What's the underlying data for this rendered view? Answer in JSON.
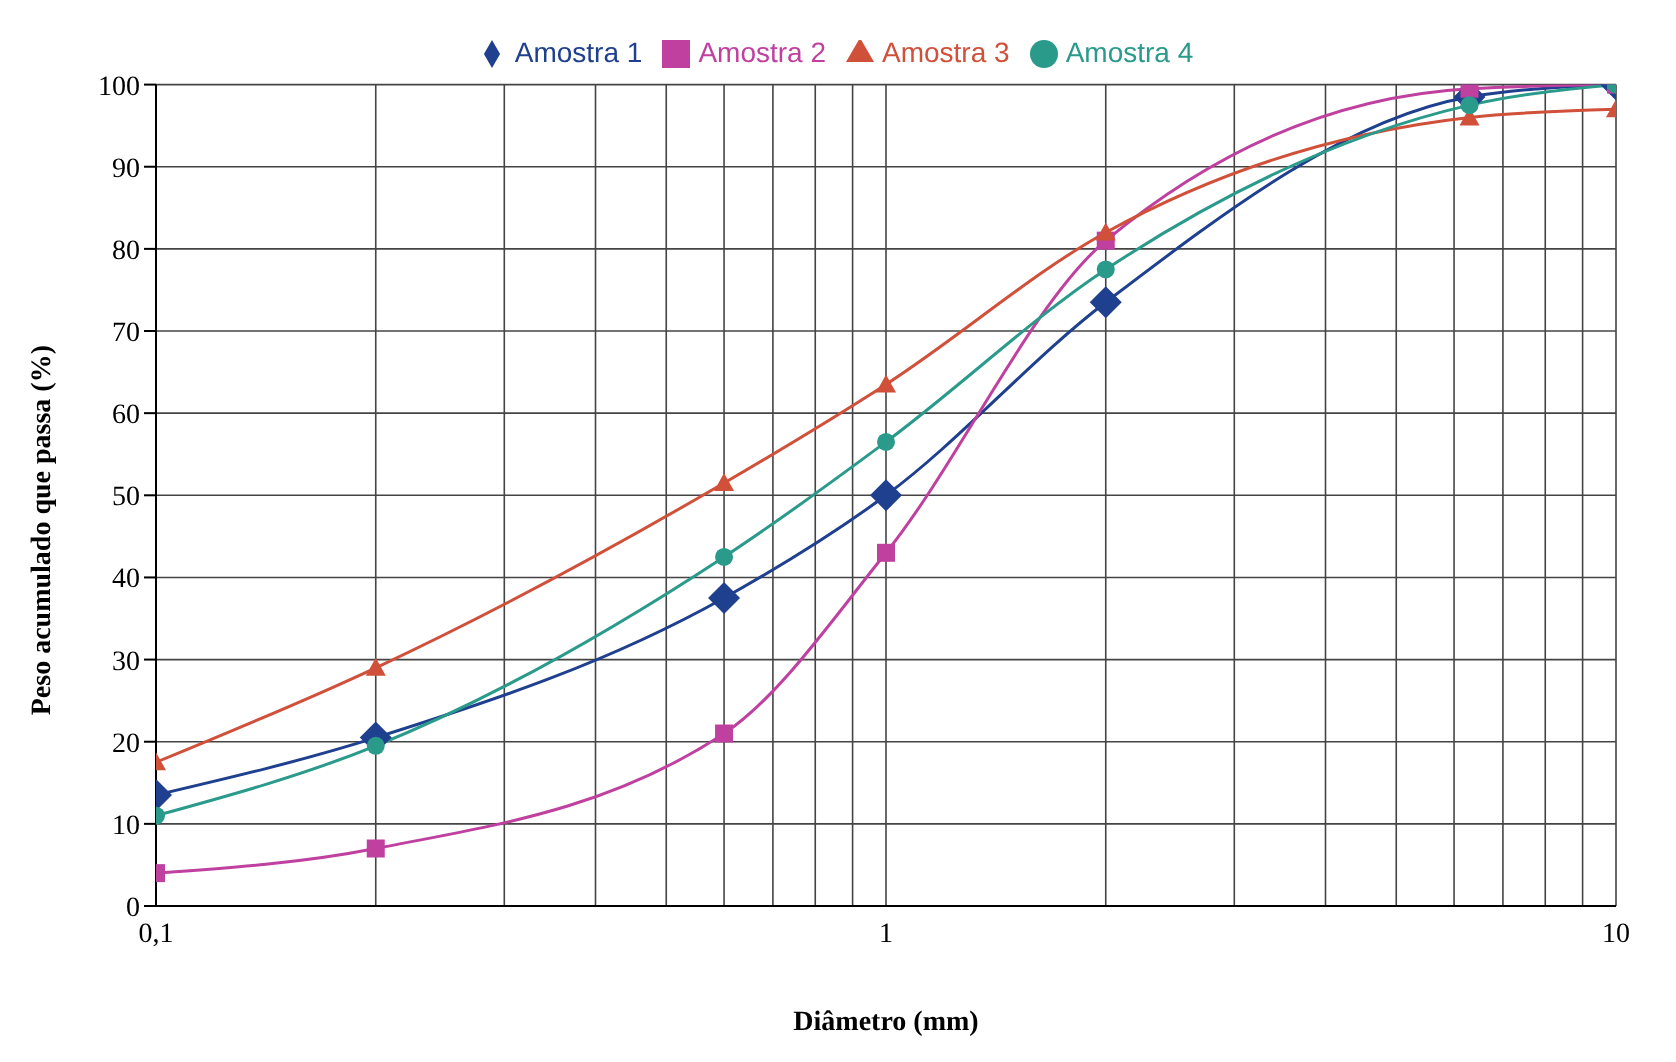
{
  "chart_data": {
    "type": "line",
    "xlabel": "Diâmetro (mm)",
    "ylabel": "Peso acumulado que passa (%)",
    "x": [
      0.1,
      0.2,
      0.6,
      1,
      2,
      6.3,
      10
    ],
    "series": [
      {
        "name": "Amostra 1",
        "color": "#1f3f8f",
        "marker": "diamond",
        "values": [
          13.5,
          20.5,
          37.5,
          50,
          73.5,
          98.5,
          100
        ]
      },
      {
        "name": "Amostra 2",
        "color": "#c040a0",
        "marker": "square",
        "values": [
          4,
          7,
          21,
          43,
          81,
          99.5,
          100
        ]
      },
      {
        "name": "Amostra 3",
        "color": "#d0503a",
        "marker": "triangle",
        "values": [
          17.5,
          29,
          51.5,
          63.5,
          82,
          96,
          97
        ]
      },
      {
        "name": "Amostra 4",
        "color": "#2a9a8a",
        "marker": "circle",
        "values": [
          11,
          19.5,
          42.5,
          56.5,
          77.5,
          97.5,
          100
        ]
      }
    ],
    "log": "x",
    "xlim": [
      0.1,
      10
    ],
    "xticks": [
      {
        "value": 0.1,
        "label": "0,1"
      },
      {
        "value": 0.2,
        "label": null
      },
      {
        "value": 0.3,
        "label": null
      },
      {
        "value": 0.4,
        "label": null
      },
      {
        "value": 0.5,
        "label": null
      },
      {
        "value": 0.6,
        "label": null
      },
      {
        "value": 0.7,
        "label": null
      },
      {
        "value": 0.8,
        "label": null
      },
      {
        "value": 0.9,
        "label": null
      },
      1,
      {
        "value": 2,
        "label": null
      },
      {
        "value": 3,
        "label": null
      },
      {
        "value": 4,
        "label": null
      },
      {
        "value": 5,
        "label": null
      },
      {
        "value": 6,
        "label": null
      },
      {
        "value": 7,
        "label": null
      },
      {
        "value": 8,
        "label": null
      },
      {
        "value": 9,
        "label": null
      },
      10
    ],
    "ylim": [
      0,
      100
    ],
    "yticks": [
      0,
      10,
      20,
      30,
      40,
      50,
      60,
      70,
      80,
      90,
      100
    ],
    "grid": true,
    "legend": "top"
  }
}
